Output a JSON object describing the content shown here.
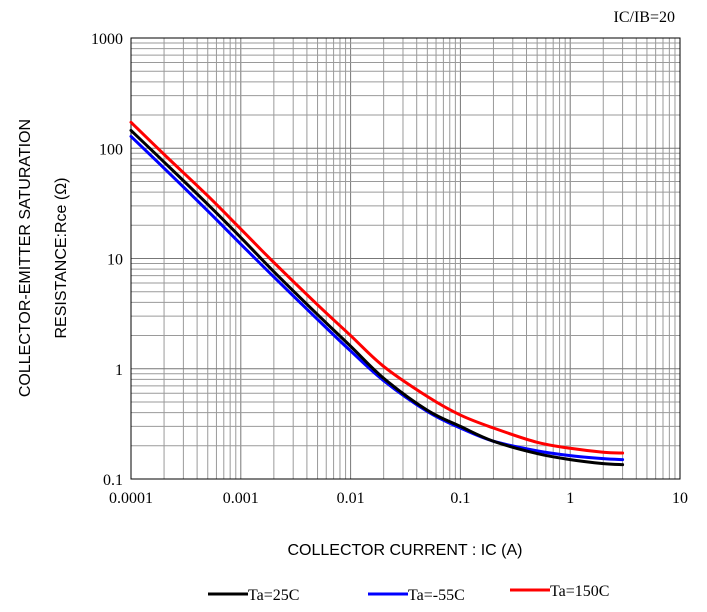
{
  "chart_data": {
    "type": "line",
    "annotation": "IC/IB=20",
    "xlabel": "COLLECTOR CURRENT : IC (A)",
    "ylabel_line1": "COLLECTOR-EMITTER SATURATION",
    "ylabel_line2": "RESISTANCE:Rce (Ω)",
    "x_scale": "log",
    "y_scale": "log",
    "xlim": [
      0.0001,
      10
    ],
    "ylim": [
      0.1,
      1000
    ],
    "x_ticks": [
      "0.0001",
      "0.001",
      "0.01",
      "0.1",
      "1",
      "10"
    ],
    "y_ticks": [
      "0.1",
      "1",
      "10",
      "100",
      "1000"
    ],
    "grid": true,
    "legend_position": "bottom",
    "series": [
      {
        "name": "Ta=25C",
        "color": "#000000",
        "x": [
          0.0001,
          0.0002,
          0.0005,
          0.001,
          0.002,
          0.005,
          0.01,
          0.02,
          0.05,
          0.1,
          0.2,
          0.5,
          1,
          2,
          3
        ],
        "y": [
          145,
          75,
          31,
          15.5,
          7.6,
          3.1,
          1.6,
          0.82,
          0.42,
          0.3,
          0.22,
          0.17,
          0.15,
          0.138,
          0.135
        ]
      },
      {
        "name": "Ta=-55C",
        "color": "#0000ff",
        "x": [
          0.0001,
          0.0002,
          0.0005,
          0.001,
          0.002,
          0.005,
          0.01,
          0.02,
          0.05,
          0.1,
          0.2,
          0.5,
          1,
          2,
          3
        ],
        "y": [
          128,
          66,
          27,
          13.5,
          6.8,
          2.8,
          1.45,
          0.78,
          0.41,
          0.29,
          0.22,
          0.18,
          0.163,
          0.153,
          0.15
        ]
      },
      {
        "name": "Ta=150C",
        "color": "#ff0000",
        "x": [
          0.0001,
          0.0002,
          0.0005,
          0.001,
          0.002,
          0.005,
          0.01,
          0.02,
          0.05,
          0.1,
          0.2,
          0.5,
          1,
          2,
          3
        ],
        "y": [
          172,
          88,
          37,
          18.5,
          9.2,
          3.8,
          2.0,
          1.05,
          0.56,
          0.38,
          0.29,
          0.215,
          0.19,
          0.175,
          0.172
        ]
      }
    ]
  }
}
